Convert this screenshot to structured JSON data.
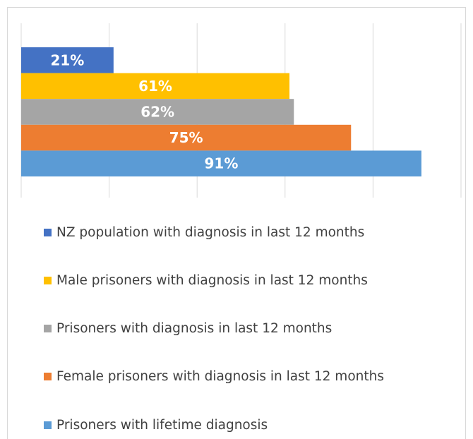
{
  "chart_data": {
    "type": "bar",
    "orientation": "horizontal",
    "categories": [
      null
    ],
    "series": [
      {
        "name": "NZ population with diagnosis in last 12 months",
        "color": "#4472c4",
        "values": [
          21
        ],
        "value_labels": [
          "21%"
        ]
      },
      {
        "name": "Male prisoners with diagnosis in last 12 months",
        "color": "#ffc000",
        "values": [
          61
        ],
        "value_labels": [
          "61%"
        ]
      },
      {
        "name": "Prisoners with diagnosis in last 12 months",
        "color": "#a5a5a5",
        "values": [
          62
        ],
        "value_labels": [
          "62%"
        ]
      },
      {
        "name": "Female prisoners with diagnosis in last 12 months",
        "color": "#ed7d31",
        "values": [
          75
        ],
        "value_labels": [
          "75%"
        ]
      },
      {
        "name": "Prisoners with lifetime diagnosis",
        "color": "#5b9bd5",
        "values": [
          91
        ],
        "value_labels": [
          "91%"
        ]
      }
    ],
    "xlim": [
      0,
      100
    ],
    "xticks": [
      0,
      20,
      40,
      60,
      80,
      100
    ],
    "grid": true,
    "legend": "bottom"
  }
}
